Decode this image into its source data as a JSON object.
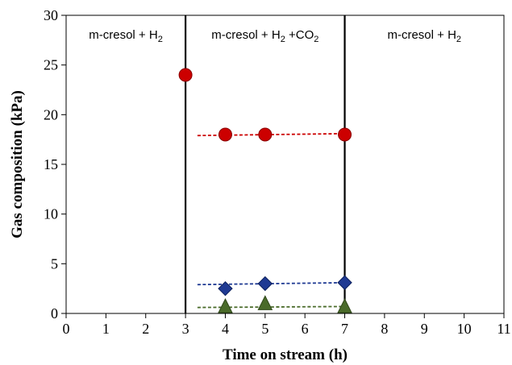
{
  "chart_data": {
    "type": "scatter",
    "xlabel": "Time on stream (h)",
    "ylabel": "Gas composition (kPa)",
    "xlim": [
      0,
      11
    ],
    "ylim": [
      0,
      30
    ],
    "x_ticks": [
      "0",
      "1",
      "2",
      "3",
      "4",
      "5",
      "6",
      "7",
      "8",
      "9",
      "10",
      "11"
    ],
    "y_ticks": [
      "0",
      "5",
      "10",
      "15",
      "20",
      "25",
      "30"
    ],
    "grid": false,
    "legend": "none",
    "region_dividers_x": [
      3,
      7
    ],
    "regions": [
      {
        "text": "m-cresol + H",
        "sub": "2",
        "tail": "",
        "sub2": ""
      },
      {
        "text": "m-cresol + H",
        "sub": "2",
        "tail": " +CO",
        "sub2": "2"
      },
      {
        "text": "m-cresol + H",
        "sub": "2",
        "tail": "",
        "sub2": ""
      }
    ],
    "series": [
      {
        "marker": "circle",
        "color": "#cc0000",
        "points": [
          {
            "x": 3,
            "y": 24
          },
          {
            "x": 4,
            "y": 18
          },
          {
            "x": 5,
            "y": 18
          },
          {
            "x": 7,
            "y": 18
          }
        ],
        "trend": {
          "x": [
            3.3,
            7.1
          ],
          "y": [
            17.9,
            18.1
          ]
        }
      },
      {
        "marker": "diamond",
        "color": "#1f3a93",
        "points": [
          {
            "x": 4,
            "y": 2.5
          },
          {
            "x": 5,
            "y": 3.0
          },
          {
            "x": 7,
            "y": 3.1
          }
        ],
        "trend": {
          "x": [
            3.3,
            7.1
          ],
          "y": [
            2.9,
            3.1
          ]
        }
      },
      {
        "marker": "triangle",
        "color": "#4a6b2a",
        "points": [
          {
            "x": 4,
            "y": 0.6
          },
          {
            "x": 5,
            "y": 0.9
          },
          {
            "x": 7,
            "y": 0.6
          }
        ],
        "trend": {
          "x": [
            3.3,
            7.1
          ],
          "y": [
            0.6,
            0.7
          ]
        }
      }
    ]
  }
}
